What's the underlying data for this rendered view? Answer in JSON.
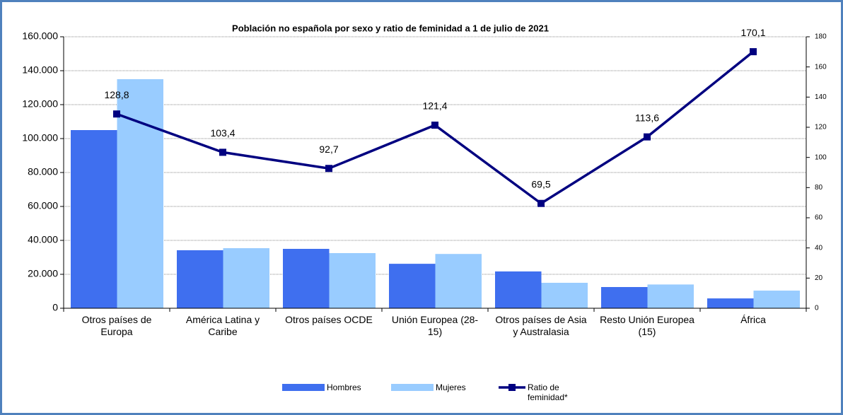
{
  "chart_data": {
    "type": "bar_line",
    "title": "Población no española por sexo y ratio de feminidad a 1 de julio de 2021",
    "categories": [
      "Otros países de Europa",
      "América Latina y Caribe",
      "Otros países OCDE",
      "Unión Europea (28-15)",
      "Otros países de Asia y Australasia",
      "Resto Unión Europea (15)",
      "África"
    ],
    "series": [
      {
        "name": "Hombres",
        "color": "#3f6fef",
        "values": [
          105000,
          34200,
          35000,
          26200,
          21700,
          12500,
          5800
        ]
      },
      {
        "name": "Mujeres",
        "color": "#99ccff",
        "values": [
          135000,
          35400,
          32500,
          32000,
          15000,
          14000,
          10400
        ]
      },
      {
        "name": "Ratio de feminidad*",
        "color": "#000080",
        "axis": "y2",
        "values": [
          128.8,
          103.4,
          92.7,
          121.4,
          69.5,
          113.6,
          170.1
        ],
        "value_labels": [
          "128,8",
          "103,4",
          "92,7",
          "121,4",
          "69,5",
          "113,6",
          "170,1"
        ]
      }
    ],
    "ylim": [
      0,
      160000
    ],
    "yticks": [
      0,
      {
        "value": 20000,
        "label": "20.000"
      },
      {
        "value": 40000,
        "label": "40.000"
      },
      {
        "value": 60000,
        "label": "60.000"
      },
      {
        "value": 80000,
        "label": "80.000"
      },
      {
        "value": 100000,
        "label": "100.000"
      },
      {
        "value": 120000,
        "label": "120.000"
      },
      {
        "value": 140000,
        "label": "140.000"
      },
      {
        "value": 160000,
        "label": "160.000"
      }
    ],
    "y2lim": [
      0,
      180
    ],
    "y2ticks": [
      0,
      20,
      40,
      60,
      80,
      100,
      120,
      140,
      160,
      180
    ],
    "grid": true
  }
}
